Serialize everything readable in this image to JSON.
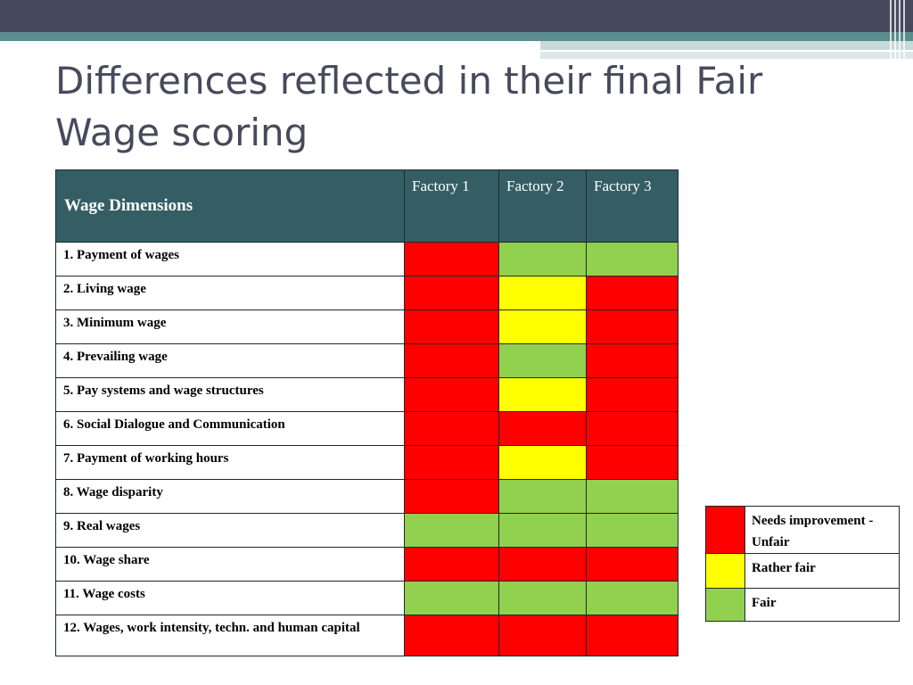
{
  "title": "Differences reflected in their final Fair Wage scoring",
  "table": {
    "header": {
      "dimension": "Wage Dimensions",
      "factories": [
        "Factory 1",
        "Factory 2",
        "Factory 3"
      ]
    },
    "rows": [
      {
        "label": "1. Payment of wages",
        "scores": [
          "red",
          "green",
          "green"
        ]
      },
      {
        "label": "2. Living wage",
        "scores": [
          "red",
          "yellow",
          "red"
        ]
      },
      {
        "label": "3. Minimum wage",
        "scores": [
          "red",
          "yellow",
          "red"
        ]
      },
      {
        "label": "4. Prevailing wage",
        "scores": [
          "red",
          "green",
          "red"
        ]
      },
      {
        "label": "5. Pay systems and wage structures",
        "scores": [
          "red",
          "yellow",
          "red"
        ]
      },
      {
        "label": "6. Social Dialogue and Communication",
        "scores": [
          "red",
          "red",
          "red"
        ]
      },
      {
        "label": "7. Payment of working hours",
        "scores": [
          "red",
          "yellow",
          "red"
        ]
      },
      {
        "label": "8. Wage disparity",
        "scores": [
          "red",
          "green",
          "green"
        ]
      },
      {
        "label": "9. Real wages",
        "scores": [
          "green",
          "green",
          "green"
        ]
      },
      {
        "label": "10. Wage share",
        "scores": [
          "red",
          "red",
          "red"
        ]
      },
      {
        "label": "11. Wage costs",
        "scores": [
          "green",
          "green",
          "green"
        ]
      },
      {
        "label": "12. Wages, work intensity, techn. and human capital",
        "scores": [
          "red",
          "red",
          "red"
        ]
      }
    ]
  },
  "legend": [
    {
      "color": "red",
      "label": "Needs improvement - Unfair"
    },
    {
      "color": "yellow",
      "label": "Rather fair"
    },
    {
      "color": "green",
      "label": "Fair"
    }
  ],
  "colors": {
    "red": "#ff0000",
    "yellow": "#ffff00",
    "green": "#92d050",
    "header": "#355e64"
  }
}
